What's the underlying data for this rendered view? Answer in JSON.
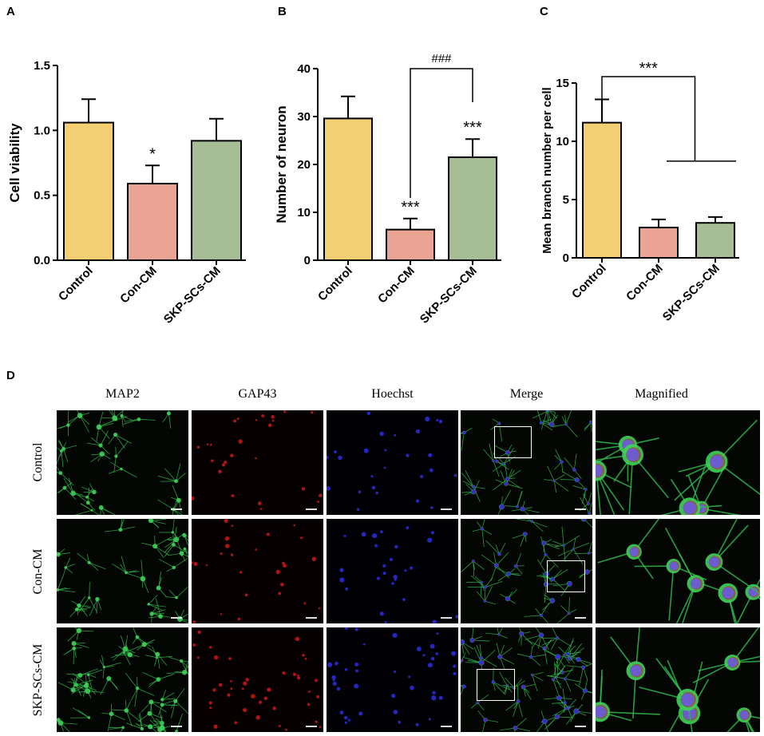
{
  "panels": {
    "A": "A",
    "B": "B",
    "C": "C",
    "D": "D"
  },
  "chart_data": [
    {
      "type": "bar",
      "panel": "A",
      "categories": [
        "Control",
        "Con-CM",
        "SKP-SCs-CM"
      ],
      "values": [
        1.06,
        0.59,
        0.92
      ],
      "errors": [
        0.18,
        0.14,
        0.17
      ],
      "colors": [
        "#f2cf72",
        "#e9a494",
        "#a7bd96"
      ],
      "ylabel": "Cell viability",
      "ylim": [
        0,
        1.5
      ],
      "yticks": [
        "0.0",
        "0.5",
        "1.0",
        "1.5"
      ],
      "yticks_values": [
        0,
        0.5,
        1.0,
        1.5
      ],
      "annotations": [
        {
          "category": "Con-CM",
          "text": "*"
        }
      ],
      "grid": false
    },
    {
      "type": "bar",
      "panel": "B",
      "categories": [
        "Control",
        "Con-CM",
        "SKP-SCs-CM"
      ],
      "values": [
        29.6,
        6.4,
        21.5
      ],
      "errors": [
        4.6,
        2.3,
        3.8
      ],
      "colors": [
        "#f2cf72",
        "#e9a494",
        "#a7bd96"
      ],
      "ylabel": "Number of neuron",
      "ylim": [
        0,
        40
      ],
      "yticks": [
        "0",
        "10",
        "20",
        "30",
        "40"
      ],
      "yticks_values": [
        0,
        10,
        20,
        30,
        40
      ],
      "annotations": [
        {
          "category": "Con-CM",
          "text": "***"
        },
        {
          "category": "SKP-SCs-CM",
          "text": "***"
        },
        {
          "bracket": [
            "Con-CM",
            "SKP-SCs-CM"
          ],
          "text": "###"
        }
      ],
      "grid": false
    },
    {
      "type": "bar",
      "panel": "C",
      "categories": [
        "Control",
        "Con-CM",
        "SKP-SCs-CM"
      ],
      "values": [
        11.6,
        2.6,
        3.0
      ],
      "errors": [
        2.0,
        0.7,
        0.5
      ],
      "colors": [
        "#f2cf72",
        "#e9a494",
        "#a7bd96"
      ],
      "ylabel": "Mean branch number per cell",
      "ylim": [
        0,
        15
      ],
      "yticks": [
        "0",
        "5",
        "10",
        "15"
      ],
      "yticks_values": [
        0,
        5,
        10,
        15
      ],
      "annotations": [
        {
          "bracket": [
            "Control",
            "Con-CM|SKP-SCs-CM"
          ],
          "text": "***"
        }
      ],
      "grid": false
    }
  ],
  "panel_d": {
    "columns": [
      "MAP2",
      "GAP43",
      "Hoechst",
      "Merge",
      "Magnified"
    ],
    "rows": [
      "Control",
      "Con-CM",
      "SKP-SCs-CM"
    ]
  }
}
